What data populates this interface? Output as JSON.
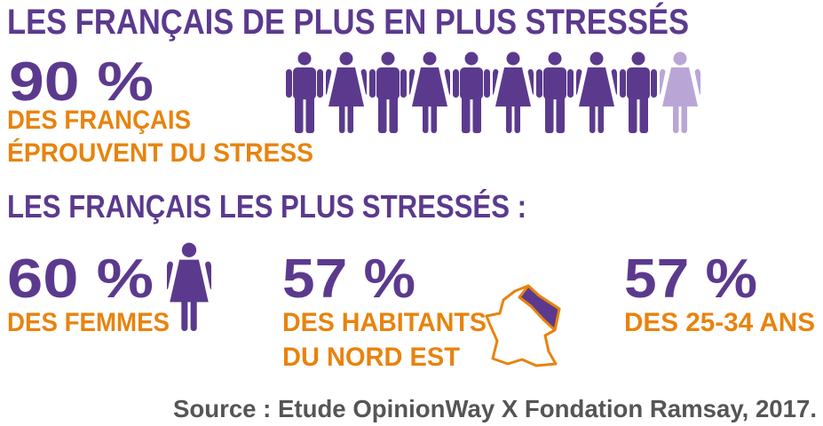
{
  "header": {
    "title": "LES FRANÇAIS DE PLUS EN PLUS STRESSÉS"
  },
  "main_stat": {
    "value": "90 %",
    "lines": [
      "DES FRANÇAIS",
      "ÉPROUVENT DU STRESS"
    ]
  },
  "subtitle": "LES FRANÇAIS LES PLUS STRESSÉS :",
  "stats": [
    {
      "value": "60 %",
      "lines": [
        "DES FEMMES"
      ]
    },
    {
      "value": "57 %",
      "lines": [
        "DES HABITANTS",
        "DU NORD EST"
      ]
    },
    {
      "value": "57 %",
      "lines": [
        "DES 25-34 ANS"
      ]
    }
  ],
  "source": "Source : Etude OpinionWay X Fondation Ramsay, 2017."
}
